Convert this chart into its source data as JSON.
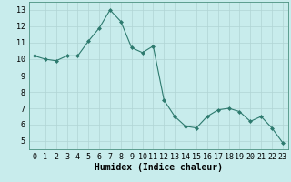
{
  "x": [
    0,
    1,
    2,
    3,
    4,
    5,
    6,
    7,
    8,
    9,
    10,
    11,
    12,
    13,
    14,
    15,
    16,
    17,
    18,
    19,
    20,
    21,
    22,
    23
  ],
  "y": [
    10.2,
    10.0,
    9.9,
    10.2,
    10.2,
    11.1,
    11.9,
    13.0,
    12.3,
    10.7,
    10.4,
    10.8,
    7.5,
    6.5,
    5.9,
    5.8,
    6.5,
    6.9,
    7.0,
    6.8,
    6.2,
    6.5,
    5.8,
    4.9
  ],
  "line_color": "#2d7a6e",
  "marker": "D",
  "marker_size": 2.0,
  "bg_color": "#c8ecec",
  "grid_color": "#b0d4d4",
  "xlabel": "Humidex (Indice chaleur)",
  "xlabel_fontsize": 7,
  "tick_fontsize": 6,
  "xlim": [
    -0.5,
    23.5
  ],
  "ylim": [
    4.5,
    13.5
  ],
  "yticks": [
    5,
    6,
    7,
    8,
    9,
    10,
    11,
    12,
    13
  ],
  "xticks": [
    0,
    1,
    2,
    3,
    4,
    5,
    6,
    7,
    8,
    9,
    10,
    11,
    12,
    13,
    14,
    15,
    16,
    17,
    18,
    19,
    20,
    21,
    22,
    23
  ]
}
